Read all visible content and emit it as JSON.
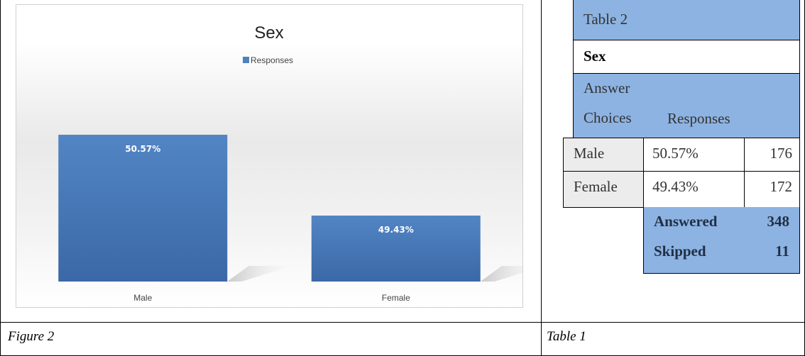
{
  "chart_data": {
    "type": "bar",
    "title": "Sex",
    "legend": {
      "label": "Responses",
      "placement": "top"
    },
    "categories": [
      "Male",
      "Female"
    ],
    "series": [
      {
        "name": "Responses",
        "values": [
          50.57,
          49.43
        ],
        "labels": [
          "50.57%",
          "49.43%"
        ]
      }
    ],
    "ylim": [
      48.5,
      51
    ],
    "bar_color": "#4f81bd",
    "grid": false
  },
  "figure_caption": "Figure 2",
  "table_caption": "Table 1",
  "table": {
    "heading": "Table 2",
    "subheading": "Sex",
    "header_line1": "Answer",
    "header_choices": "Choices",
    "header_responses": "Responses",
    "rows": [
      {
        "choice": "Male",
        "percent": "50.57%",
        "count": "176"
      },
      {
        "choice": "Female",
        "percent": "49.43%",
        "count": "172"
      }
    ],
    "answered_label": "Answered",
    "answered_value": "348",
    "skipped_label": "Skipped",
    "skipped_value": "11"
  }
}
